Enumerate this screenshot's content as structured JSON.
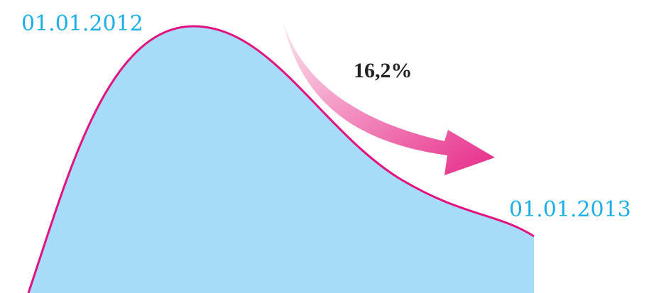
{
  "chart_data": {
    "type": "area",
    "title": "",
    "xlabel": "",
    "ylabel": "",
    "annotations": {
      "start_date": "01.01.2012",
      "end_date": "01.01.2013",
      "change": "16,2%"
    },
    "grid": false,
    "legend": "none"
  },
  "colors": {
    "area_fill": "#a6dcf7",
    "curve_stroke": "#e2137f",
    "arrow_light": "#fde6f0",
    "arrow_dark": "#e62a88",
    "date_text": "#1eaee6",
    "change_text": "#222222"
  },
  "icons": {
    "trend_arrow": "curved-down-arrow-icon"
  }
}
